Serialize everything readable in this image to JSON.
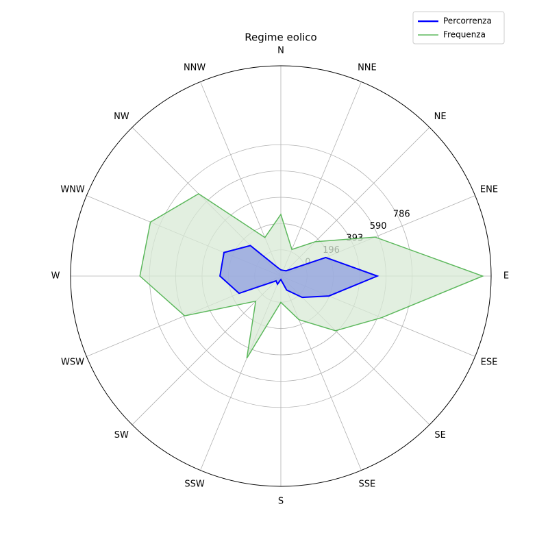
{
  "chart_data": {
    "type": "radar",
    "title": "Regime eolico",
    "categories": [
      "N",
      "NNE",
      "NE",
      "ENE",
      "E",
      "ESE",
      "SE",
      "SSE",
      "S",
      "SSW",
      "SW",
      "WSW",
      "W",
      "WNW",
      "NW",
      "NNW"
    ],
    "series": [
      {
        "name": "Percorrenza",
        "color": "#0000ff",
        "fill": "#8f9fe0",
        "values": [
          -150,
          -150,
          -140,
          167,
          525,
          193,
          29,
          -83,
          -170,
          -130,
          -145,
          142,
          259,
          264,
          126,
          -124
        ]
      },
      {
        "name": "Frequenza",
        "color": "#5cb85c",
        "fill": "#d8ead5",
        "values": [
          265,
          19,
          167,
          566,
          1313,
          618,
          382,
          157,
          0,
          469,
          70,
          582,
          858,
          859,
          674,
          116
        ]
      }
    ],
    "ylim": [
      -196,
      1376
    ],
    "yticks": [
      0,
      196,
      393,
      590,
      786
    ],
    "grid": true,
    "legend": "upper right"
  }
}
